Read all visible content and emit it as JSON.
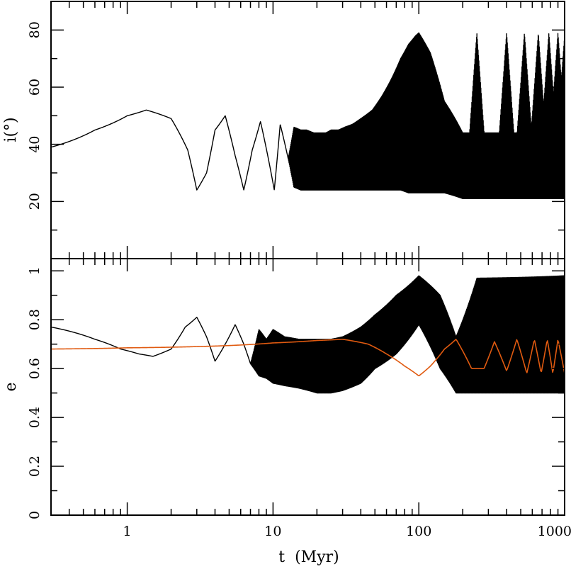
{
  "chart_data": [
    {
      "type": "line",
      "panel": "top",
      "ylabel": "i(°)",
      "xscale": "log",
      "xlim": [
        0.3,
        1000
      ],
      "ylim": [
        0,
        90
      ],
      "yticks": [
        20,
        40,
        60,
        80
      ],
      "ytick_labels": [
        "20",
        "40",
        "60",
        "80"
      ],
      "grid": false,
      "series": [
        {
          "color": "#000000",
          "envelope_t": [
            0.3,
            0.6,
            1.0,
            1.35,
            2.0,
            2.6,
            3.0,
            3.5,
            4.0,
            4.7,
            5.5,
            6.3,
            7.2,
            8.2,
            9.2,
            10.2,
            11.2,
            12.7,
            13.9,
            15.5,
            17.0,
            19.0,
            21.0,
            23.0,
            25.0,
            28.0,
            31.0,
            35.0,
            40.0,
            48.0,
            56.0,
            65.0,
            75.0,
            85.0,
            95.0,
            100.0,
            120.0,
            150.0,
            200.0,
            300.0,
            500.0,
            700.0,
            1000.0
          ],
          "upper": [
            39,
            45,
            50,
            52,
            49,
            38,
            24,
            30,
            45,
            50,
            36,
            24,
            38,
            48,
            36,
            24,
            47,
            35,
            46,
            45,
            45,
            44,
            44,
            44,
            45,
            45,
            46,
            47,
            49,
            52,
            57,
            63,
            70,
            75,
            78,
            79,
            72,
            55,
            44,
            44,
            44,
            44,
            44
          ],
          "lower": [
            39,
            45,
            50,
            52,
            49,
            38,
            24,
            30,
            45,
            50,
            36,
            24,
            38,
            48,
            36,
            24,
            47,
            35,
            25,
            24,
            24,
            24,
            24,
            24,
            24,
            24,
            24,
            24,
            24,
            24,
            24,
            24,
            24,
            23,
            23,
            23,
            23,
            23,
            21,
            21,
            21,
            21,
            21
          ],
          "oscillation_peaks": {
            "t": [
              250,
              400,
              530,
              660,
              780,
              900,
              1000
            ],
            "i": [
              79,
              79,
              79,
              79,
              79,
              79,
              78
            ]
          }
        }
      ]
    },
    {
      "type": "line",
      "panel": "bottom",
      "xlabel": "t  (Myr)",
      "ylabel": "e",
      "xscale": "log",
      "xlim": [
        0.3,
        1000
      ],
      "ylim": [
        0,
        1.05
      ],
      "xticks": [
        1,
        10,
        100,
        1000
      ],
      "xtick_labels": [
        "1",
        "10",
        "100",
        "1000"
      ],
      "yticks": [
        0,
        0.2,
        0.4,
        0.6,
        0.8,
        1
      ],
      "ytick_labels": [
        "0",
        "0.2",
        "0.4",
        "0.6",
        "0.8",
        "1"
      ],
      "grid": false,
      "series": [
        {
          "color": "#000000",
          "envelope_t": [
            0.3,
            0.6,
            0.9,
            1.2,
            1.5,
            2.0,
            2.5,
            3.0,
            3.5,
            4.0,
            4.7,
            5.5,
            6.3,
            7.0,
            8.0,
            9.0,
            10.0,
            12.0,
            15.0,
            20.0,
            25.0,
            30.0,
            40.0,
            50.0,
            70.0,
            100.0,
            140.0,
            180.0,
            250.0,
            1000.0
          ],
          "upper": [
            0.77,
            0.72,
            0.68,
            0.66,
            0.65,
            0.68,
            0.77,
            0.81,
            0.73,
            0.63,
            0.7,
            0.78,
            0.7,
            0.62,
            0.76,
            0.72,
            0.76,
            0.73,
            0.72,
            0.72,
            0.72,
            0.73,
            0.77,
            0.82,
            0.9,
            0.98,
            0.9,
            0.73,
            0.97,
            0.98
          ],
          "lower": [
            0.77,
            0.72,
            0.68,
            0.66,
            0.65,
            0.68,
            0.77,
            0.81,
            0.73,
            0.63,
            0.7,
            0.78,
            0.7,
            0.62,
            0.57,
            0.56,
            0.54,
            0.53,
            0.52,
            0.5,
            0.5,
            0.51,
            0.54,
            0.6,
            0.66,
            0.78,
            0.6,
            0.5,
            0.5,
            0.5
          ]
        },
        {
          "color": "#e05a10",
          "t": [
            0.3,
            1.0,
            3.0,
            10.0,
            20.0,
            30.0,
            45.0,
            60.0,
            80.0,
            100.0,
            120.0,
            150.0,
            180.0,
            230.0,
            280.0,
            330.0,
            400.0,
            470.0,
            550.0,
            620.0,
            690.0,
            760.0,
            830.0,
            900.0,
            1000.0
          ],
          "e": [
            0.68,
            0.685,
            0.69,
            0.705,
            0.715,
            0.72,
            0.7,
            0.66,
            0.61,
            0.57,
            0.61,
            0.68,
            0.72,
            0.6,
            0.6,
            0.71,
            0.59,
            0.72,
            0.58,
            0.72,
            0.58,
            0.72,
            0.58,
            0.72,
            0.58
          ]
        }
      ]
    }
  ]
}
